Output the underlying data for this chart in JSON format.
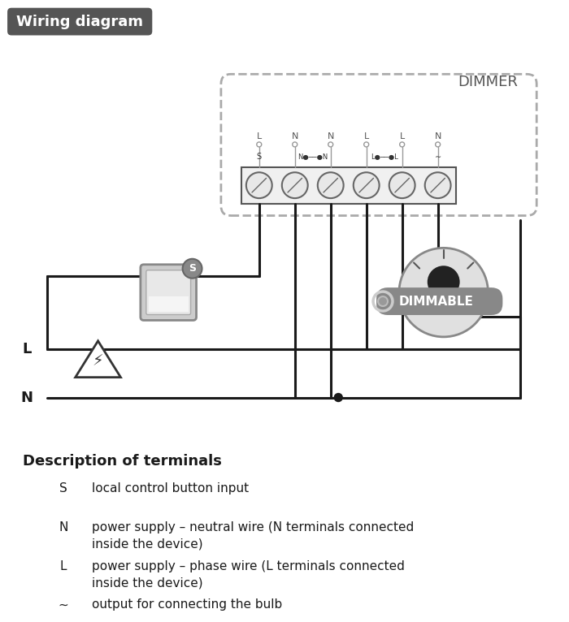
{
  "title": "Wiring diagram",
  "bg_color": "#ffffff",
  "title_bg": "#555555",
  "title_fg": "#ffffff",
  "dimmer_label": "DIMMER",
  "terminals": [
    "S",
    "N",
    "N",
    "L",
    "L",
    "∼"
  ],
  "terminal_labels_top": [
    "L",
    "N",
    "N",
    "L",
    "L",
    "N"
  ],
  "dimmable_label": "DIMMABLE",
  "desc_title": "Description of terminals",
  "desc_items": [
    [
      "S",
      "local control button input"
    ],
    [
      "N",
      "power supply – neutral wire (N terminals connected\ninside the device)"
    ],
    [
      "L",
      "power supply – phase wire (L terminals connected\ninside the device)"
    ],
    [
      "∼",
      "output for connecting the bulb"
    ]
  ]
}
